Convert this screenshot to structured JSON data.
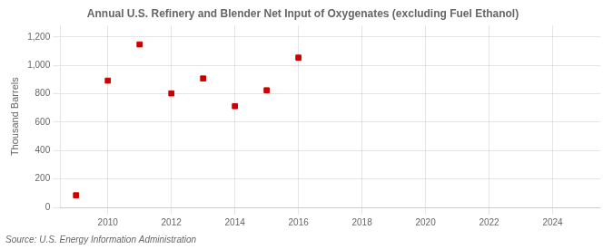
{
  "chart_data": {
    "type": "scatter",
    "title": "Annual U.S. Refinery and Blender Net Input of Oxygenates (excluding Fuel Ethanol)",
    "y_label": "Thousand Barrels",
    "annotation": "Source: U.S. Energy Information Administration",
    "x": [
      2009,
      2010,
      2011,
      2012,
      2013,
      2014,
      2015,
      2016
    ],
    "values": [
      85,
      893,
      1148,
      803,
      908,
      713,
      825,
      1055
    ],
    "color": "#cc0000",
    "marker": "square",
    "xlim": [
      2008.5,
      2025.5
    ],
    "xticks": [
      2010,
      2012,
      2014,
      2016,
      2018,
      2020,
      2022,
      2024
    ],
    "ylim": [
      0,
      1280
    ],
    "yticks": [
      0,
      200,
      400,
      600,
      800,
      {
        "value": 1000,
        "label": "1,000"
      },
      {
        "value": 1200,
        "label": "1,200"
      }
    ],
    "grid": true
  }
}
